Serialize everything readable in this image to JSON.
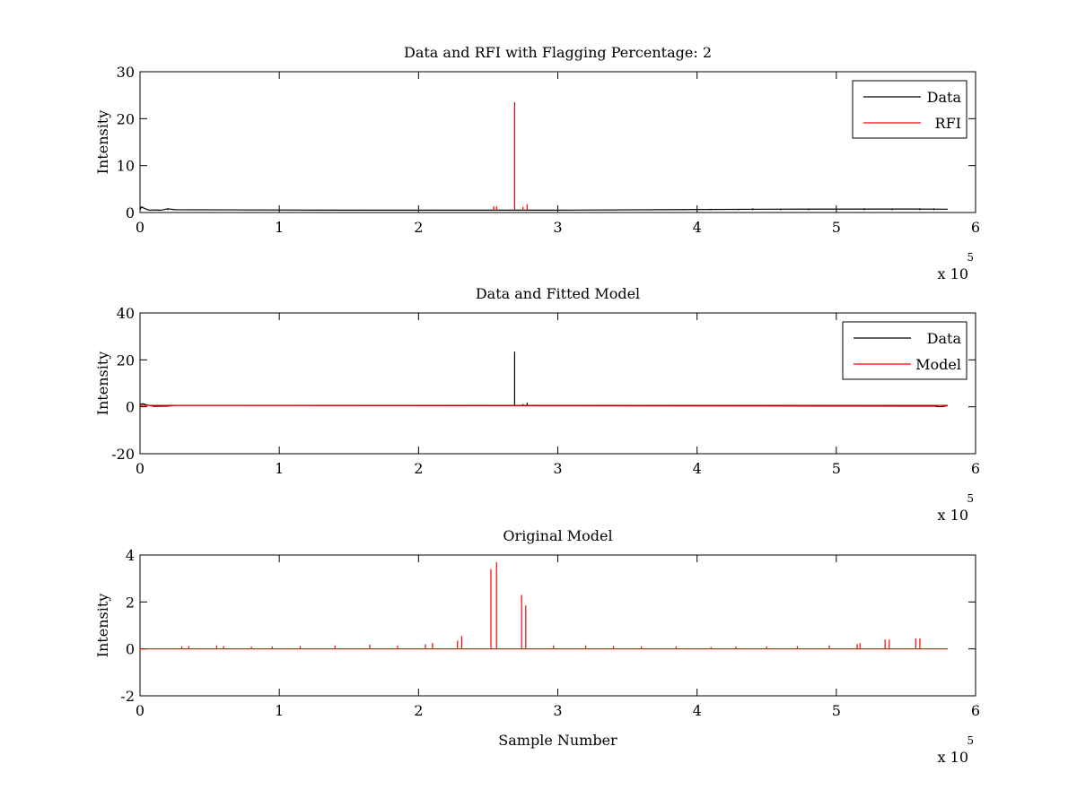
{
  "chart_data": [
    {
      "type": "line",
      "title": "Data and RFI with Flagging Percentage: 2",
      "xlabel": "",
      "ylabel": "Intensity",
      "xlim": [
        0,
        6
      ],
      "ylim": [
        0,
        30
      ],
      "xticks": [
        "0",
        "1",
        "2",
        "3",
        "4",
        "5",
        "6"
      ],
      "yticks": [
        "0",
        "10",
        "20",
        "30"
      ],
      "x_multiplier": {
        "base": "x 10",
        "exponent": "5"
      },
      "legend": {
        "position": "top-right",
        "entries": [
          "Data",
          "RFI"
        ]
      },
      "series": [
        {
          "name": "Data",
          "color": "#000000",
          "baseline": 0.5,
          "points": [
            [
              0,
              0.6
            ],
            [
              0.01,
              1.2
            ],
            [
              0.03,
              0.9
            ],
            [
              0.06,
              0.55
            ],
            [
              0.15,
              0.5
            ],
            [
              0.2,
              0.8
            ],
            [
              0.25,
              0.6
            ],
            [
              1.5,
              0.5
            ],
            [
              3.0,
              0.5
            ],
            [
              4.5,
              0.7
            ],
            [
              5.5,
              0.75
            ],
            [
              5.8,
              0.7
            ]
          ],
          "spikes": [
            [
              0.2,
              0.8
            ],
            [
              1.4,
              0.6
            ],
            [
              1.6,
              0.6
            ],
            [
              2.1,
              0.6
            ],
            [
              3.7,
              0.7
            ],
            [
              3.9,
              0.7
            ],
            [
              4.1,
              0.8
            ],
            [
              4.3,
              0.7
            ],
            [
              4.4,
              0.9
            ],
            [
              4.6,
              0.8
            ],
            [
              4.8,
              0.8
            ],
            [
              5.0,
              0.8
            ],
            [
              5.2,
              0.9
            ],
            [
              5.4,
              0.8
            ],
            [
              5.6,
              0.9
            ],
            [
              5.7,
              0.9
            ]
          ]
        },
        {
          "name": "RFI",
          "color": "#ff0000",
          "baseline": 0.5,
          "spikes": [
            [
              2.54,
              1.3
            ],
            [
              2.56,
              1.3
            ],
            [
              2.69,
              23.5
            ],
            [
              2.75,
              1.2
            ],
            [
              2.78,
              1.8
            ]
          ]
        }
      ]
    },
    {
      "type": "line",
      "title": "Data and Fitted Model",
      "xlabel": "",
      "ylabel": "Intensity",
      "xlim": [
        0,
        6
      ],
      "ylim": [
        -20,
        40
      ],
      "xticks": [
        "0",
        "1",
        "2",
        "3",
        "4",
        "5",
        "6"
      ],
      "yticks": [
        "-20",
        "0",
        "20",
        "40"
      ],
      "x_multiplier": {
        "base": "x 10",
        "exponent": "5"
      },
      "legend": {
        "position": "top-right",
        "entries": [
          "Data",
          "Model"
        ]
      },
      "series": [
        {
          "name": "Data",
          "color": "#000000",
          "baseline": 0.5,
          "points": [
            [
              0,
              1.0
            ],
            [
              0.02,
              1.3
            ],
            [
              0.05,
              0.8
            ],
            [
              0.1,
              0.2
            ],
            [
              0.2,
              0.3
            ],
            [
              0.25,
              0.6
            ],
            [
              5.7,
              0.3
            ],
            [
              5.75,
              0.0
            ],
            [
              5.8,
              0.5
            ]
          ],
          "spikes": [
            [
              2.69,
              23.5
            ],
            [
              2.75,
              1.2
            ],
            [
              2.78,
              1.8
            ]
          ]
        },
        {
          "name": "Model",
          "color": "#ff0000",
          "baseline": 0.6,
          "points": [
            [
              0,
              0.6
            ],
            [
              5.8,
              0.6
            ]
          ],
          "spikes": []
        }
      ]
    },
    {
      "type": "line",
      "title": "Original Model",
      "xlabel": "Sample Number",
      "ylabel": "Intensity",
      "xlim": [
        0,
        6
      ],
      "ylim": [
        -2,
        4
      ],
      "xticks": [
        "0",
        "1",
        "2",
        "3",
        "4",
        "5",
        "6"
      ],
      "yticks": [
        "-2",
        "0",
        "2",
        "4"
      ],
      "x_multiplier": {
        "base": "x 10",
        "exponent": "5"
      },
      "legend": null,
      "series": [
        {
          "name": "",
          "color": "#ff0000",
          "baseline": 0.0,
          "points": [
            [
              0,
              0
            ],
            [
              5.8,
              0
            ]
          ],
          "spikes": [
            [
              0.3,
              0.1
            ],
            [
              0.35,
              0.12
            ],
            [
              0.55,
              0.15
            ],
            [
              0.6,
              0.12
            ],
            [
              0.8,
              0.1
            ],
            [
              0.95,
              0.1
            ],
            [
              1.15,
              0.12
            ],
            [
              1.4,
              0.15
            ],
            [
              1.65,
              0.18
            ],
            [
              1.85,
              0.15
            ],
            [
              2.05,
              0.2
            ],
            [
              2.1,
              0.25
            ],
            [
              2.28,
              0.35
            ],
            [
              2.31,
              0.55
            ],
            [
              2.52,
              3.4
            ],
            [
              2.56,
              3.7
            ],
            [
              2.74,
              2.3
            ],
            [
              2.77,
              1.85
            ],
            [
              2.97,
              0.15
            ],
            [
              3.2,
              0.15
            ],
            [
              3.4,
              0.12
            ],
            [
              3.6,
              0.1
            ],
            [
              3.85,
              0.1
            ],
            [
              4.1,
              0.08
            ],
            [
              4.28,
              0.1
            ],
            [
              4.5,
              0.1
            ],
            [
              4.72,
              0.12
            ],
            [
              4.95,
              0.15
            ],
            [
              5.15,
              0.2
            ],
            [
              5.17,
              0.25
            ],
            [
              5.35,
              0.4
            ],
            [
              5.38,
              0.4
            ],
            [
              5.57,
              0.45
            ],
            [
              5.6,
              0.45
            ]
          ]
        }
      ]
    }
  ]
}
